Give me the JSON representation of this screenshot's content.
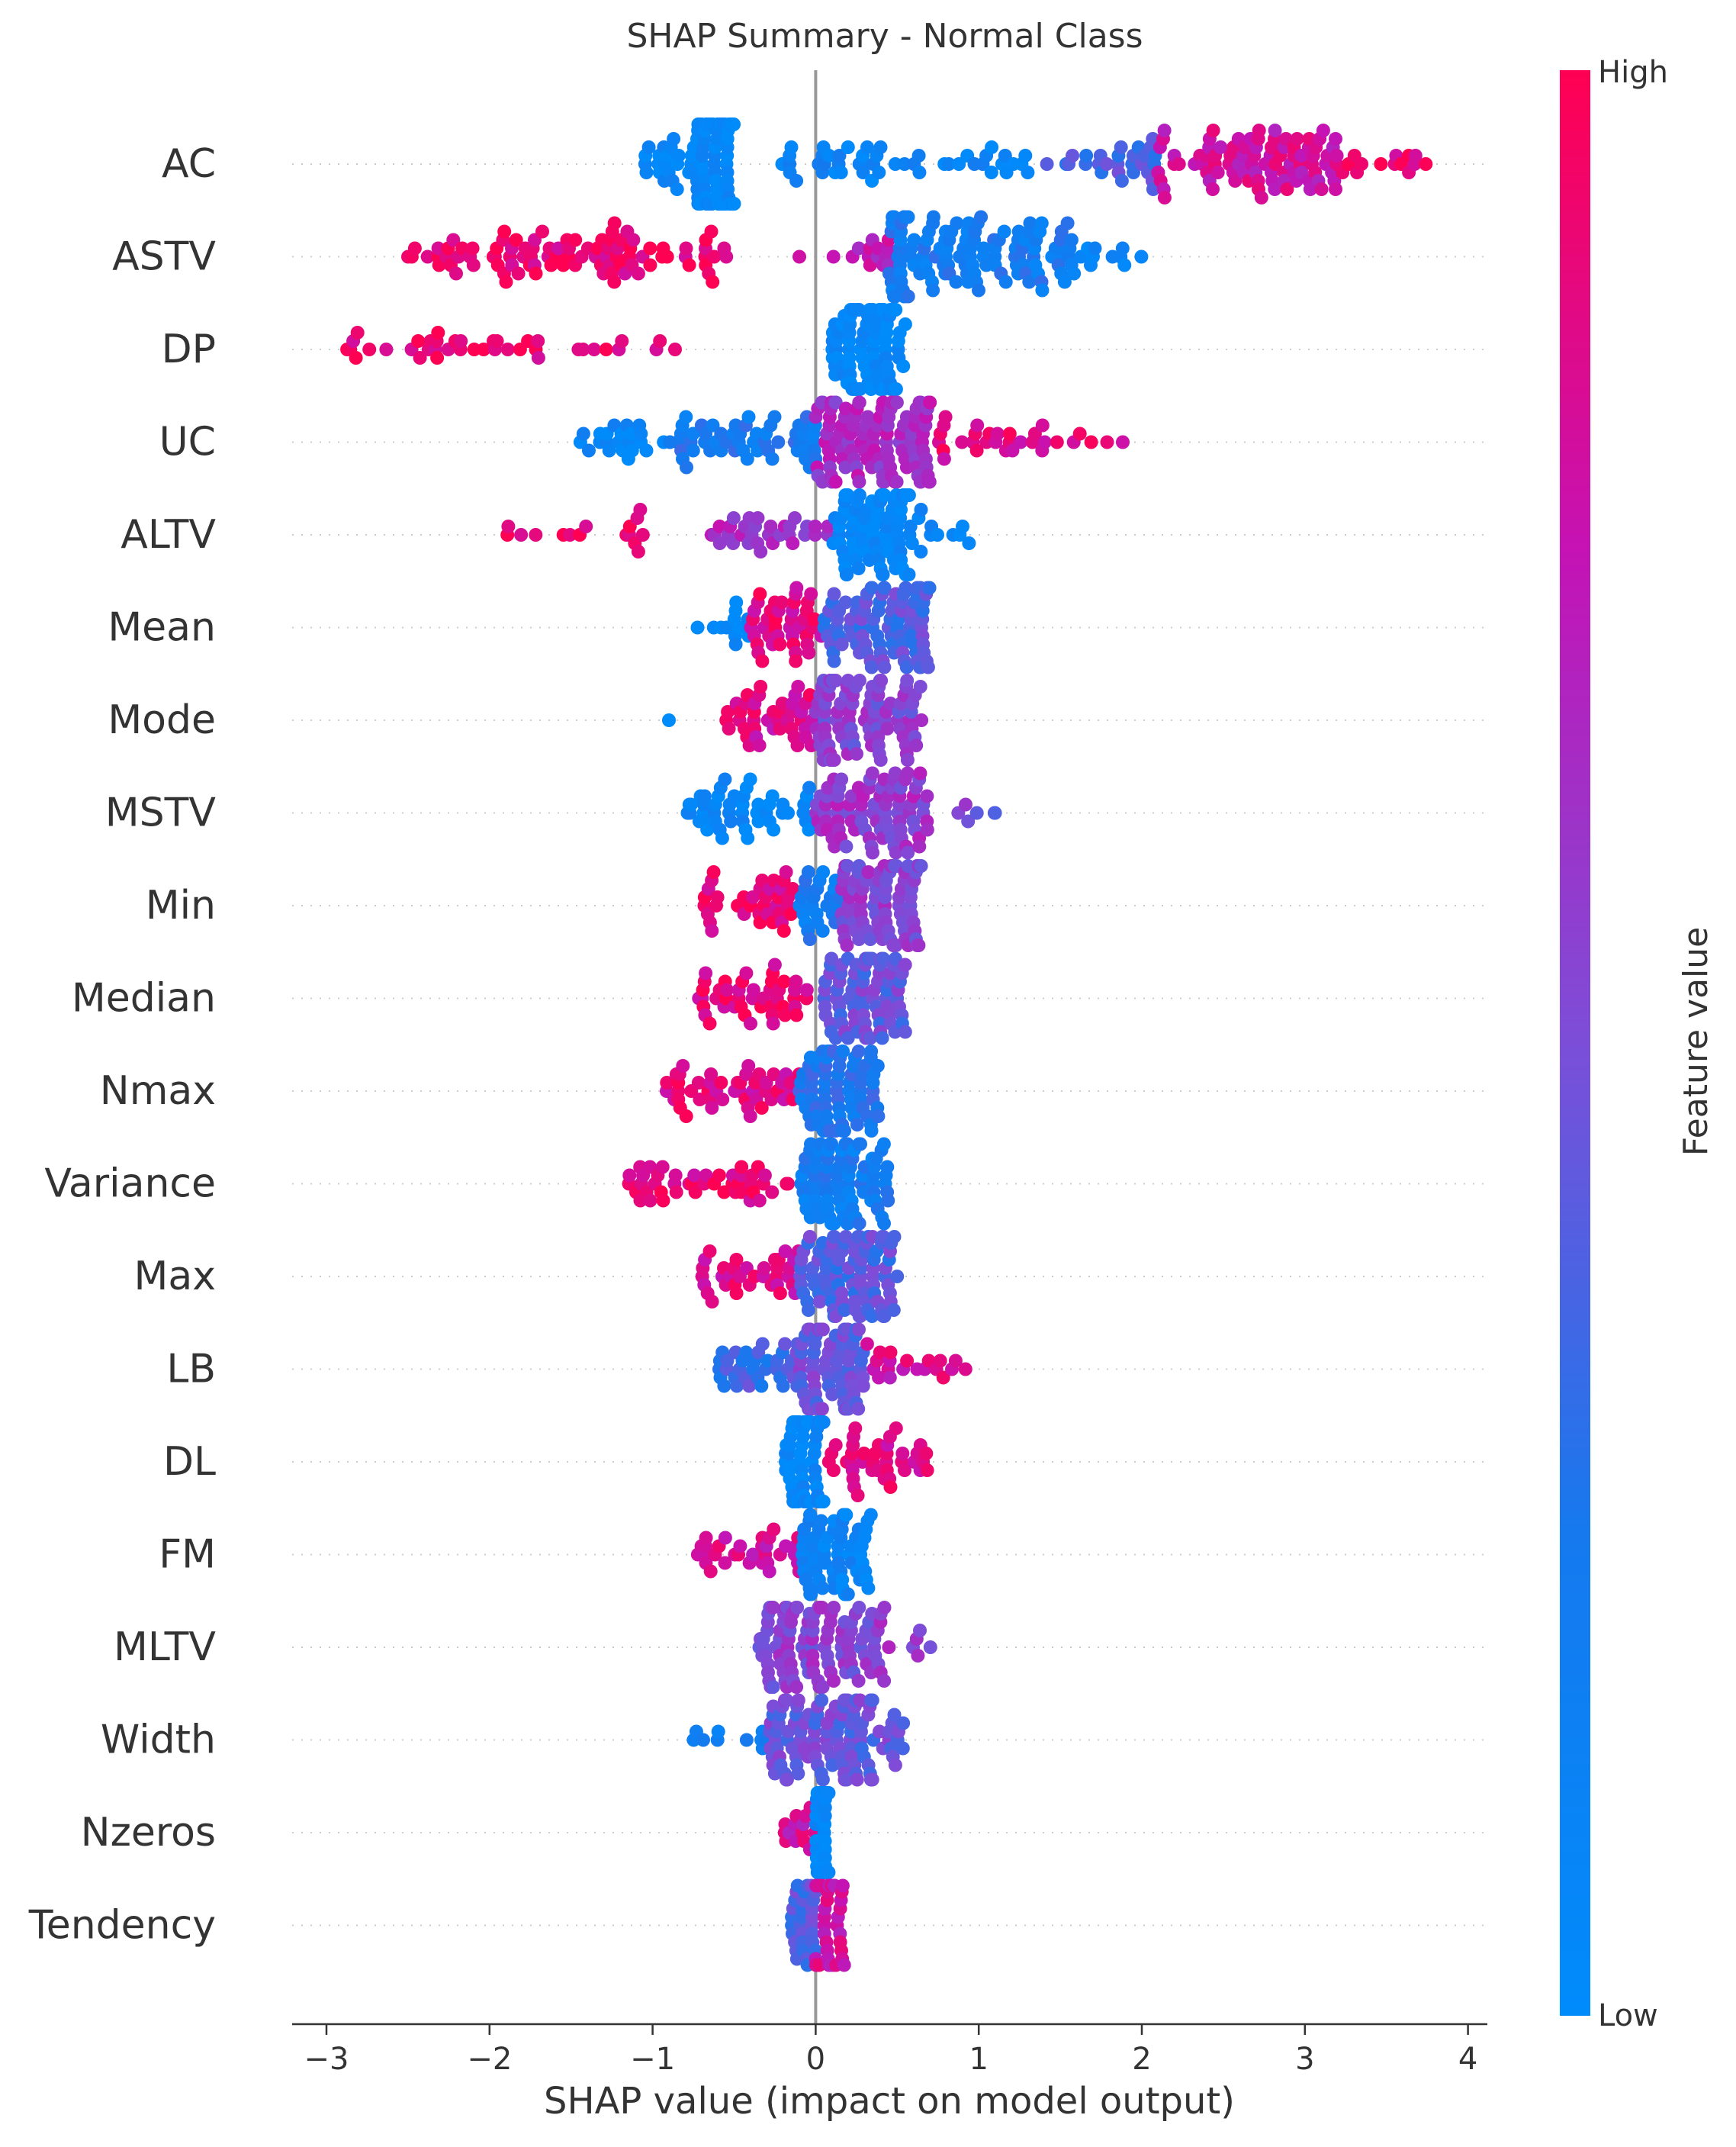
{
  "chart_data": {
    "type": "scatter",
    "subtype": "shap-beeswarm",
    "title": "SHAP Summary - Normal Class",
    "xlabel": "SHAP value (impact on model output)",
    "xlim": [
      -3.2,
      4.1
    ],
    "xticks": [
      -3,
      -2,
      -1,
      0,
      1,
      2,
      3,
      4
    ],
    "xtick_labels": [
      "−3",
      "−2",
      "−1",
      "0",
      "1",
      "2",
      "3",
      "4"
    ],
    "grid": "dotted horizontal guide per feature",
    "zero_line": true,
    "colorbar": {
      "label": "Feature value",
      "high_label": "High",
      "low_label": "Low",
      "low_color": "#008bfb",
      "high_color": "#ff0052",
      "placement": "right"
    },
    "features": [
      {
        "name": "AC",
        "groups": [
          {
            "from": -1.05,
            "to": -0.75,
            "n": 22,
            "c": 0.05
          },
          {
            "from": -0.75,
            "to": -0.5,
            "n": 95,
            "c": 0.05
          },
          {
            "from": -0.5,
            "to": 1.4,
            "n": 48,
            "c": 0.12
          },
          {
            "from": 1.4,
            "to": 2.1,
            "n": 28,
            "c": 0.4
          },
          {
            "from": 2.1,
            "to": 3.2,
            "n": 90,
            "c": 0.8
          },
          {
            "from": 3.2,
            "to": 3.75,
            "n": 14,
            "c": 0.9
          }
        ]
      },
      {
        "name": "ASTV",
        "groups": [
          {
            "from": -2.5,
            "to": -0.45,
            "n": 95,
            "c": 0.92
          },
          {
            "from": -0.1,
            "to": -0.1,
            "n": 1,
            "c": 0.9
          },
          {
            "from": 0.1,
            "to": 0.45,
            "n": 14,
            "c": 0.7
          },
          {
            "from": 0.45,
            "to": 1.6,
            "n": 120,
            "c": 0.2
          },
          {
            "from": 1.6,
            "to": 2.0,
            "n": 10,
            "c": 0.08
          }
        ]
      },
      {
        "name": "DP",
        "groups": [
          {
            "from": -2.9,
            "to": -0.8,
            "n": 40,
            "c": 0.92
          },
          {
            "from": 0.1,
            "to": 0.55,
            "n": 85,
            "c": 0.04
          }
        ]
      },
      {
        "name": "UC",
        "groups": [
          {
            "from": -1.45,
            "to": -0.9,
            "n": 22,
            "c": 0.08
          },
          {
            "from": -0.9,
            "to": 0.0,
            "n": 55,
            "c": 0.22
          },
          {
            "from": 0.0,
            "to": 0.7,
            "n": 110,
            "c": 0.65
          },
          {
            "from": 0.7,
            "to": 1.9,
            "n": 32,
            "c": 0.88
          }
        ]
      },
      {
        "name": "ALTV",
        "groups": [
          {
            "from": -1.9,
            "to": -1.05,
            "n": 16,
            "c": 0.95
          },
          {
            "from": -0.7,
            "to": 0.1,
            "n": 32,
            "c": 0.65
          },
          {
            "from": 0.1,
            "to": 0.6,
            "n": 75,
            "c": 0.04
          },
          {
            "from": 0.6,
            "to": 0.98,
            "n": 10,
            "c": 0.05
          }
        ]
      },
      {
        "name": "Mean",
        "groups": [
          {
            "from": -0.75,
            "to": -0.4,
            "n": 12,
            "c": 0.05
          },
          {
            "from": -0.4,
            "to": 0.05,
            "n": 42,
            "c": 0.88
          },
          {
            "from": 0.05,
            "to": 0.7,
            "n": 90,
            "c": 0.4
          }
        ]
      },
      {
        "name": "Mode",
        "groups": [
          {
            "from": -0.9,
            "to": -0.9,
            "n": 1,
            "c": 0.02
          },
          {
            "from": -0.55,
            "to": 0.0,
            "n": 42,
            "c": 0.85
          },
          {
            "from": 0.0,
            "to": 0.65,
            "n": 90,
            "c": 0.55
          }
        ]
      },
      {
        "name": "MSTV",
        "groups": [
          {
            "from": -0.8,
            "to": 0.0,
            "n": 48,
            "c": 0.06
          },
          {
            "from": 0.0,
            "to": 0.7,
            "n": 85,
            "c": 0.6
          },
          {
            "from": 0.7,
            "to": 1.15,
            "n": 6,
            "c": 0.5
          }
        ]
      },
      {
        "name": "Min",
        "groups": [
          {
            "from": -0.7,
            "to": -0.1,
            "n": 38,
            "c": 0.9
          },
          {
            "from": -0.1,
            "to": 0.15,
            "n": 25,
            "c": 0.2
          },
          {
            "from": 0.15,
            "to": 0.65,
            "n": 80,
            "c": 0.55
          }
        ]
      },
      {
        "name": "Median",
        "groups": [
          {
            "from": -0.75,
            "to": -0.05,
            "n": 45,
            "c": 0.9
          },
          {
            "from": 0.05,
            "to": 0.55,
            "n": 80,
            "c": 0.45
          }
        ]
      },
      {
        "name": "Nmax",
        "groups": [
          {
            "from": -0.95,
            "to": -0.1,
            "n": 48,
            "c": 0.88
          },
          {
            "from": -0.1,
            "to": 0.4,
            "n": 80,
            "c": 0.25
          }
        ]
      },
      {
        "name": "Variance",
        "groups": [
          {
            "from": -1.15,
            "to": -0.1,
            "n": 45,
            "c": 0.9
          },
          {
            "from": -0.1,
            "to": 0.45,
            "n": 80,
            "c": 0.18
          }
        ]
      },
      {
        "name": "Max",
        "groups": [
          {
            "from": -0.7,
            "to": -0.1,
            "n": 35,
            "c": 0.85
          },
          {
            "from": -0.1,
            "to": 0.5,
            "n": 90,
            "c": 0.4
          }
        ]
      },
      {
        "name": "LB",
        "groups": [
          {
            "from": -0.6,
            "to": -0.15,
            "n": 30,
            "c": 0.35
          },
          {
            "from": -0.15,
            "to": 0.3,
            "n": 80,
            "c": 0.45
          },
          {
            "from": 0.3,
            "to": 0.92,
            "n": 20,
            "c": 0.82
          }
        ]
      },
      {
        "name": "DL",
        "groups": [
          {
            "from": -0.2,
            "to": 0.05,
            "n": 70,
            "c": 0.05
          },
          {
            "from": 0.05,
            "to": 0.7,
            "n": 40,
            "c": 0.85
          }
        ]
      },
      {
        "name": "FM",
        "groups": [
          {
            "from": -0.75,
            "to": -0.1,
            "n": 32,
            "c": 0.82
          },
          {
            "from": -0.1,
            "to": 0.35,
            "n": 65,
            "c": 0.1
          }
        ]
      },
      {
        "name": "MLTV",
        "groups": [
          {
            "from": -0.35,
            "to": 0.4,
            "n": 110,
            "c": 0.55
          },
          {
            "from": 0.4,
            "to": 0.72,
            "n": 8,
            "c": 0.6
          }
        ]
      },
      {
        "name": "Width",
        "groups": [
          {
            "from": -0.75,
            "to": -0.3,
            "n": 10,
            "c": 0.15
          },
          {
            "from": -0.3,
            "to": 0.55,
            "n": 110,
            "c": 0.45
          }
        ]
      },
      {
        "name": "Nzeros",
        "groups": [
          {
            "from": -0.2,
            "to": 0.0,
            "n": 14,
            "c": 0.8
          },
          {
            "from": 0.0,
            "to": 0.08,
            "n": 60,
            "c": 0.03
          }
        ]
      },
      {
        "name": "Tendency",
        "groups": [
          {
            "from": -0.15,
            "to": 0.0,
            "n": 30,
            "c": 0.4
          },
          {
            "from": 0.0,
            "to": 0.18,
            "n": 40,
            "c": 0.8
          }
        ]
      }
    ]
  }
}
